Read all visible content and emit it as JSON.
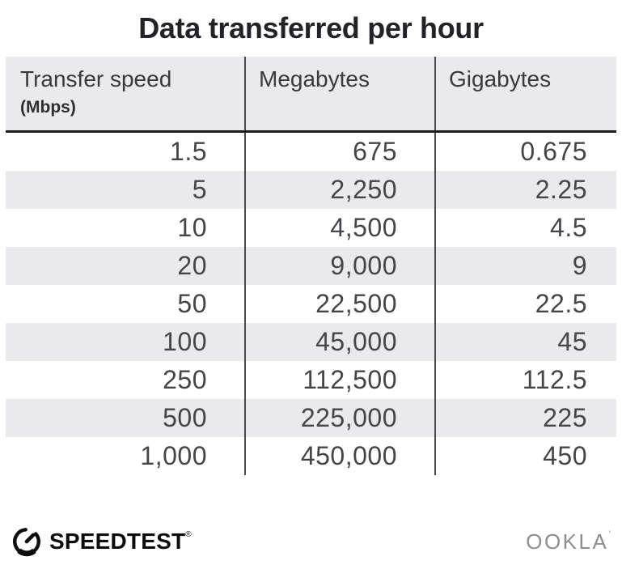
{
  "title": "Data transferred per hour",
  "table": {
    "columns": [
      {
        "label": "Transfer speed",
        "sublabel": "(Mbps)"
      },
      {
        "label": "Megabytes"
      },
      {
        "label": "Gigabytes"
      }
    ],
    "rows": [
      [
        "1.5",
        "675",
        "0.675"
      ],
      [
        "5",
        "2,250",
        "2.25"
      ],
      [
        "10",
        "4,500",
        "4.5"
      ],
      [
        "20",
        "9,000",
        "9"
      ],
      [
        "50",
        "22,500",
        "22.5"
      ],
      [
        "100",
        "45,000",
        "45"
      ],
      [
        "250",
        "112,500",
        "112.5"
      ],
      [
        "500",
        "225,000",
        "225"
      ],
      [
        "1,000",
        "450,000",
        "450"
      ]
    ]
  },
  "chart_data": {
    "type": "table",
    "title": "Data transferred per hour",
    "columns": [
      "Transfer speed (Mbps)",
      "Megabytes",
      "Gigabytes"
    ],
    "rows": [
      [
        1.5,
        675,
        0.675
      ],
      [
        5,
        2250,
        2.25
      ],
      [
        10,
        4500,
        4.5
      ],
      [
        20,
        9000,
        9
      ],
      [
        50,
        22500,
        22.5
      ],
      [
        100,
        45000,
        45
      ],
      [
        250,
        112500,
        112.5
      ],
      [
        500,
        225000,
        225
      ],
      [
        1000,
        450000,
        450
      ]
    ],
    "layout": {
      "striped_rows": true,
      "stripe_color": "#eae9ec",
      "column_dividers": true
    }
  },
  "footer": {
    "speedtest_label": "SPEEDTEST",
    "speedtest_mark": "®",
    "ookla_label": "OOKLA",
    "ookla_mark": "’"
  },
  "colors": {
    "background": "#ffffff",
    "title_text": "#232327",
    "header_bg": "#eae9ec",
    "stripe_bg": "#eae9ec",
    "header_text": "#3a3a3e",
    "cell_text": "#454549",
    "divider_line": "#4a4a4c",
    "header_underline": "#1c1c1e",
    "speedtest_black": "#0d0d0d",
    "ookla_gray": "#8e8e92"
  }
}
